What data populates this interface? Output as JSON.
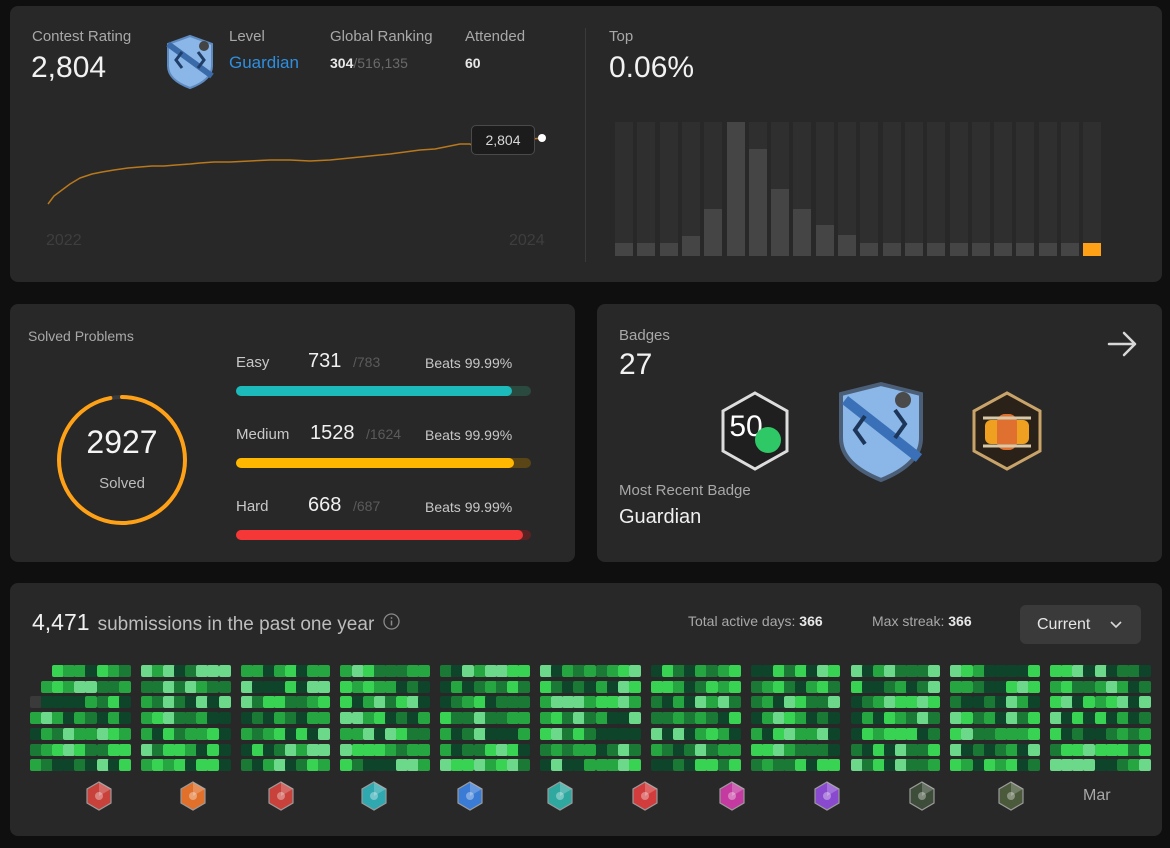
{
  "contest": {
    "rating_label": "Contest Rating",
    "rating_value": "2,804",
    "level_label": "Level",
    "level_value": "Guardian",
    "global_label": "Global Ranking",
    "global_rank": "304",
    "global_total": "/516,135",
    "attended_label": "Attended",
    "attended_value": "60",
    "tooltip_value": "2,804",
    "year_start": "2022",
    "year_end": "2024",
    "top_label": "Top",
    "top_value": "0.06%",
    "histogram_levels": [
      0.1,
      0.1,
      0.1,
      0.15,
      0.35,
      1.0,
      0.8,
      0.5,
      0.35,
      0.23,
      0.16,
      0.1,
      0.1,
      0.1,
      0.1,
      0.1,
      0.1,
      0.1,
      0.1,
      0.1,
      0.1,
      0.1
    ],
    "highlight_index": 21,
    "accent": "#ffa116"
  },
  "solved": {
    "title": "Solved Problems",
    "total": "2927",
    "total_label": "Solved",
    "ring_fraction": 0.97,
    "items": [
      {
        "name": "Easy",
        "count": "731",
        "total": "/783",
        "beats": "Beats 99.99%",
        "fraction": 0.934,
        "color": "#1cbaba",
        "track": "#2a4a3f"
      },
      {
        "name": "Medium",
        "count": "1528",
        "total": "/1624",
        "beats": "Beats 99.99%",
        "fraction": 0.941,
        "color": "#ffb700",
        "track": "#5a4516"
      },
      {
        "name": "Hard",
        "count": "668",
        "total": "/687",
        "beats": "Beats 99.99%",
        "fraction": 0.972,
        "color": "#f63737",
        "track": "#5a2323"
      }
    ]
  },
  "badges": {
    "title": "Badges",
    "count": "27",
    "recent_label": "Most Recent Badge",
    "recent_name": "Guardian",
    "items": [
      "50-days-badge-icon",
      "guardian-badge-icon",
      "2023-annual-badge-icon"
    ],
    "badge_50_text": "50"
  },
  "submissions": {
    "count": "4,471",
    "text": "submissions in the past one year",
    "active_label": "Total active days:",
    "active_value": "366",
    "streak_label": "Max streak:",
    "streak_value": "366",
    "select_value": "Current",
    "last_month": "Mar",
    "month_icon_colors": [
      "#c8413b",
      "#e0702a",
      "#c8413b",
      "#2fa8b0",
      "#3a7bd5",
      "#2fa8a0",
      "#d23c3c",
      "#c43aa0",
      "#8a4ad0",
      "#3d4d3a",
      "#4a5a3a"
    ]
  }
}
